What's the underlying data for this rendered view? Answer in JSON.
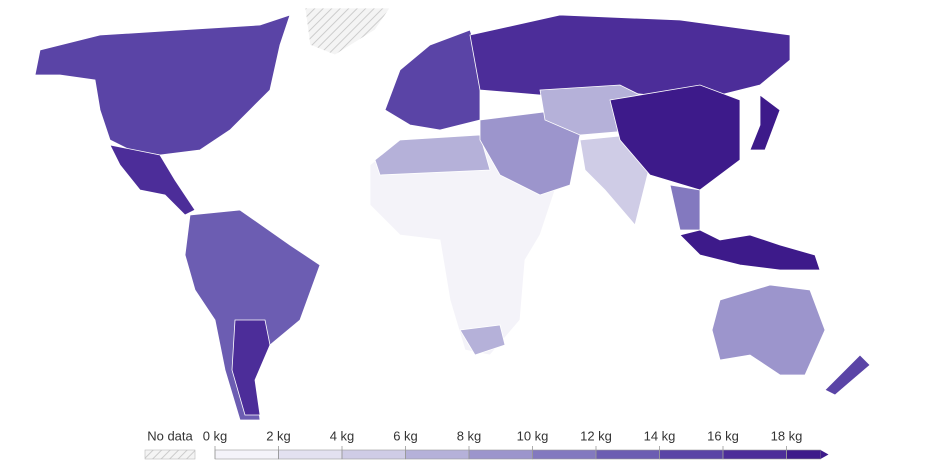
{
  "legend": {
    "no_data": "No data",
    "ticks": [
      "0 kg",
      "2 kg",
      "4 kg",
      "6 kg",
      "8 kg",
      "10 kg",
      "12 kg",
      "14 kg",
      "16 kg",
      "18 kg"
    ],
    "colors": [
      "#f4f3f9",
      "#e3e1f0",
      "#cfcce6",
      "#b5b1d9",
      "#9c95cc",
      "#8379bf",
      "#6c5db2",
      "#5a44a6",
      "#4c2d99",
      "#3d1a8a"
    ]
  }
}
